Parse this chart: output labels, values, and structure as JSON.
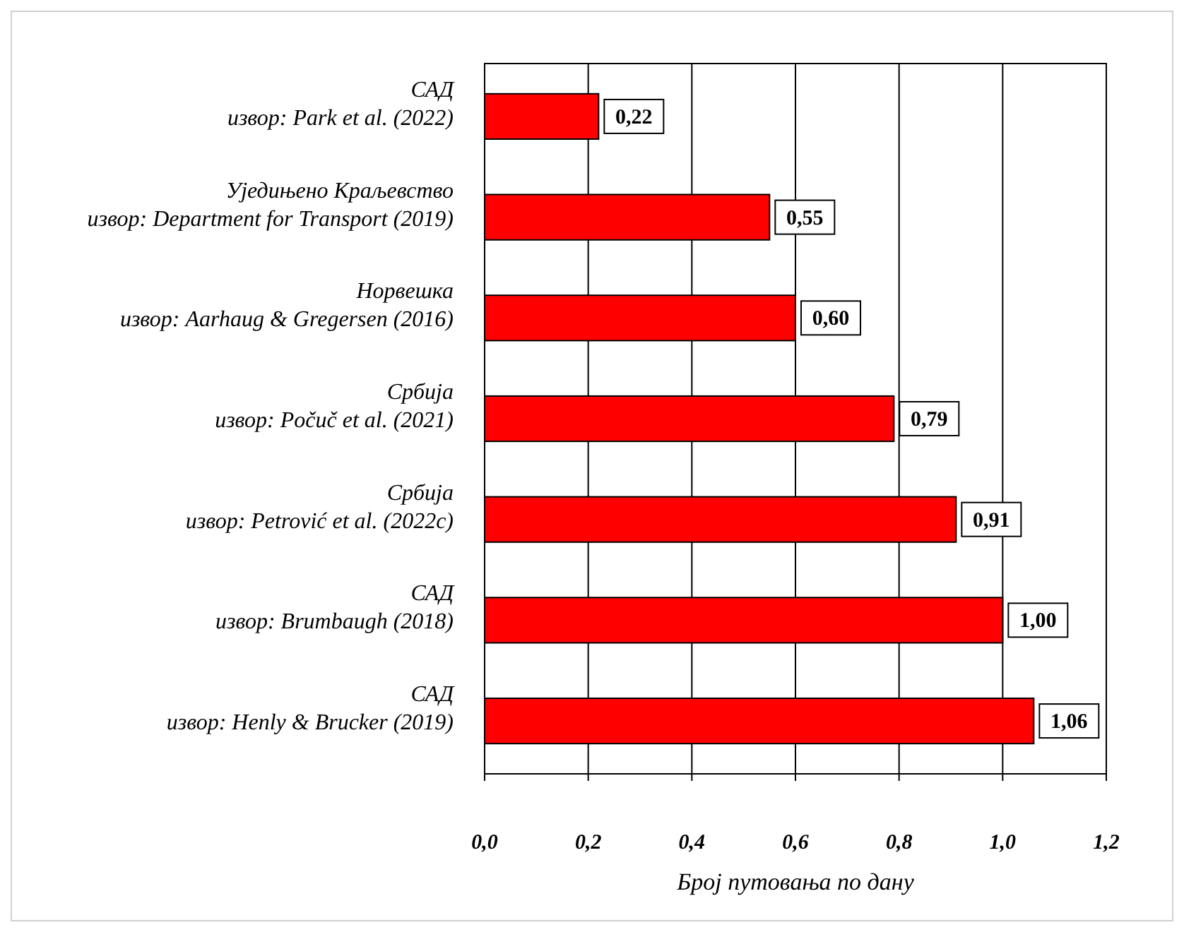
{
  "chart_data": {
    "type": "bar",
    "orientation": "horizontal",
    "categories": [
      "САД\nизвор: Park et al. (2022)",
      "Уједињено Краљевство\nизвор: Department for Transport (2019)",
      "Норвешка\nизвор: Aarhaug & Gregersen (2016)",
      "Србија\nизвор: Počuč et al. (2021)",
      "Србија\nизвор: Petrović et al. (2022c)",
      "САД\nизвор: Brumbaugh (2018)",
      "САД\nизвор: Henly & Brucker (2019)"
    ],
    "values": [
      0.22,
      0.55,
      0.6,
      0.79,
      0.91,
      1.0,
      1.06
    ],
    "value_labels": [
      "0,22",
      "0,55",
      "0,60",
      "0,79",
      "0,91",
      "1,00",
      "1,06"
    ],
    "color": "#ff0000",
    "xlabel": "Број путовања по дану",
    "xlim": [
      0,
      1.2
    ],
    "xticks": [
      {
        "value": 0,
        "label": "0,0"
      },
      {
        "value": 0.2,
        "label": "0,2"
      },
      {
        "value": 0.4,
        "label": "0,4"
      },
      {
        "value": 0.6,
        "label": "0,6"
      },
      {
        "value": 0.8,
        "label": "0,8"
      },
      {
        "value": 1.0,
        "label": "1,0"
      },
      {
        "value": 1.2,
        "label": "1,2"
      }
    ],
    "grid": "x"
  }
}
